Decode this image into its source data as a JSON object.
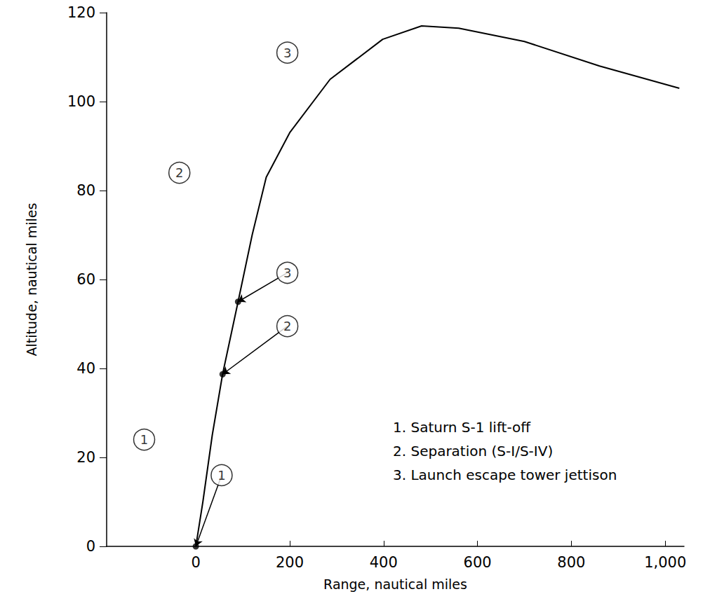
{
  "chart_data": {
    "type": "line",
    "x_label": "Range, nautical miles",
    "y_label": "Altitude, nautical miles",
    "x": [
      0,
      15,
      35,
      57,
      90,
      120,
      150,
      200,
      286,
      398,
      481,
      560,
      700,
      860,
      1030
    ],
    "values": [
      0,
      10,
      25,
      38.7,
      55,
      70,
      83,
      93,
      105,
      114,
      117,
      116.5,
      113.5,
      108,
      103
    ],
    "color": "#000000",
    "xlim": [
      -190,
      1040
    ],
    "xticks": [
      0,
      200,
      400,
      600,
      800,
      1000
    ],
    "ylim": [
      0,
      120
    ],
    "yticks": [
      0,
      20,
      40,
      60,
      80,
      100,
      120
    ],
    "grid": false,
    "annotations": [
      {
        "text": "1",
        "x": 55,
        "y": 16,
        "target": [
          0,
          0
        ]
      },
      {
        "text": "2",
        "x": 195,
        "y": 49.5,
        "target": [
          57,
          38.7
        ]
      },
      {
        "text": "3",
        "x": 195,
        "y": 61.5,
        "target": [
          90,
          55
        ]
      }
    ],
    "icon_labels": [
      {
        "text": "1",
        "x": -110,
        "y": 24
      },
      {
        "text": "2",
        "x": -35,
        "y": 84
      },
      {
        "text": "3",
        "x": 195,
        "y": 111
      }
    ],
    "notes": [
      "1. Saturn S-1 lift-off",
      "2. Separation (S-I/S-IV)",
      "3. Launch escape tower jettison"
    ]
  }
}
